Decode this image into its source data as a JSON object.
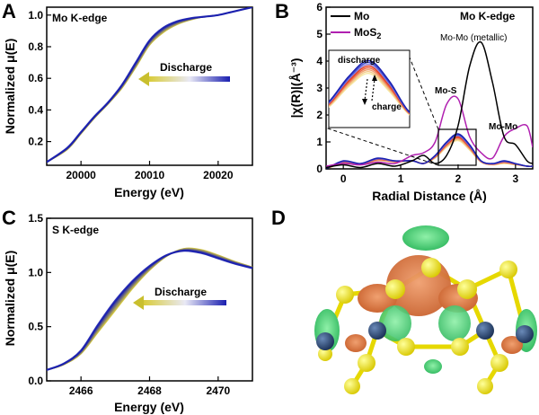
{
  "panels": {
    "A": {
      "letter": "A",
      "label": "Mo K-edge",
      "arrow_label": "Discharge"
    },
    "B": {
      "letter": "B",
      "label": "Mo K-edge",
      "legend": [
        "Mo",
        "MoS"
      ],
      "legend_subscript": "2",
      "annotations": {
        "metallic": "Mo-Mo (metallic)",
        "mos": "Mo-S",
        "momo": "Mo-Mo",
        "inset_top": "discharge",
        "inset_bottom": "charge"
      }
    },
    "C": {
      "letter": "C",
      "label": "S K-edge",
      "arrow_label": "Discharge"
    },
    "D": {
      "letter": "D"
    }
  },
  "colors": {
    "discharge_dark": "#1a1fb0",
    "discharge_light": "#d9cc3a",
    "mo_metal": "#000000",
    "mos2": "#b020b0",
    "charge_red": "#e83a1a",
    "cloud_green": "#3cc96a",
    "cloud_orange": "#d8733c",
    "sulfur": "#f0e020",
    "molybdenum": "#2a4a7a"
  },
  "chart_data": [
    {
      "panel": "A",
      "type": "line",
      "title": "Mo K-edge",
      "xlabel": "Energy (eV)",
      "ylabel": "Normalized μ(E)",
      "xlim": [
        19995,
        20025
      ],
      "ylim": [
        0.05,
        1.05
      ],
      "xticks": [
        20000,
        20010,
        20020
      ],
      "yticks": [
        0.2,
        0.4,
        0.6,
        0.8,
        1.0
      ],
      "x": [
        19995,
        19998,
        20000,
        20002,
        20004,
        20006,
        20008,
        20010,
        20012,
        20014,
        20016,
        20018,
        20020,
        20022,
        20025
      ],
      "series": [
        {
          "values": [
            0.07,
            0.15,
            0.25,
            0.35,
            0.44,
            0.54,
            0.67,
            0.81,
            0.89,
            0.94,
            0.97,
            0.99,
            1.0,
            1.02,
            1.05
          ]
        },
        {
          "values": [
            0.07,
            0.16,
            0.26,
            0.36,
            0.45,
            0.56,
            0.7,
            0.84,
            0.92,
            0.96,
            0.98,
            0.99,
            1.0,
            1.02,
            1.05
          ]
        }
      ]
    },
    {
      "panel": "B",
      "type": "line",
      "title": "Mo K-edge",
      "xlabel": "Radial Distance (Å)",
      "ylabel": "|χ(R)|(Å⁻³)",
      "xlim": [
        -0.3,
        3.3
      ],
      "ylim": [
        0,
        6
      ],
      "xticks": [
        0,
        1,
        2,
        3
      ],
      "yticks": [
        0,
        1,
        2,
        3,
        4,
        5,
        6
      ],
      "x": [
        -0.3,
        0.0,
        0.3,
        0.6,
        0.9,
        1.2,
        1.4,
        1.6,
        1.8,
        2.0,
        2.2,
        2.4,
        2.6,
        2.8,
        3.0,
        3.2,
        3.3
      ],
      "series": [
        {
          "name": "Mo",
          "values": [
            0.05,
            0.15,
            0.05,
            0.2,
            0.1,
            0.3,
            0.5,
            0.2,
            0.5,
            1.6,
            3.8,
            4.7,
            3.2,
            1.2,
            0.9,
            0.3,
            0.2
          ]
        },
        {
          "name": "MoS2",
          "values": [
            0.1,
            0.2,
            0.15,
            0.25,
            0.2,
            0.5,
            0.6,
            1.0,
            2.4,
            2.6,
            1.2,
            0.6,
            0.4,
            1.2,
            1.5,
            1.6,
            0.8
          ]
        },
        {
          "values": [
            0.0,
            0.3,
            0.2,
            0.4,
            0.3,
            0.3,
            0.2,
            0.5,
            1.0,
            1.3,
            0.9,
            0.3,
            0.2,
            0.3,
            0.2,
            0.1,
            0.1
          ]
        },
        {
          "values": [
            0.0,
            0.2,
            0.15,
            0.3,
            0.25,
            0.3,
            0.2,
            0.4,
            0.8,
            1.05,
            0.7,
            0.25,
            0.15,
            0.2,
            0.15,
            0.1,
            0.1
          ]
        }
      ]
    },
    {
      "panel": "C",
      "type": "line",
      "title": "S K-edge",
      "xlabel": "Energy (eV)",
      "ylabel": "Normalized μ(E)",
      "xlim": [
        2465,
        2471
      ],
      "ylim": [
        0,
        1.5
      ],
      "xticks": [
        2466,
        2468,
        2470
      ],
      "yticks": [
        0.0,
        0.5,
        1.0,
        1.5
      ],
      "x": [
        2465,
        2465.5,
        2466,
        2466.5,
        2467,
        2467.5,
        2468,
        2468.5,
        2469,
        2469.5,
        2470,
        2470.5,
        2471
      ],
      "series": [
        {
          "values": [
            0.1,
            0.15,
            0.25,
            0.45,
            0.65,
            0.85,
            1.02,
            1.15,
            1.22,
            1.21,
            1.16,
            1.1,
            1.05
          ]
        },
        {
          "values": [
            0.1,
            0.16,
            0.28,
            0.52,
            0.74,
            0.92,
            1.06,
            1.16,
            1.2,
            1.18,
            1.13,
            1.08,
            1.04
          ]
        }
      ]
    }
  ]
}
